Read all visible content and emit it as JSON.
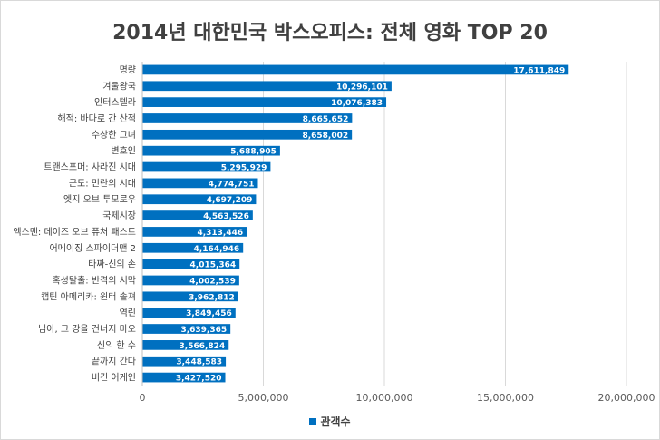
{
  "chart_data": {
    "type": "bar",
    "orientation": "horizontal",
    "title": "2014년 대한민국 박스오피스: 전체 영화 TOP 20",
    "categories": [
      "명량",
      "겨울왕국",
      "인터스텔라",
      "해적: 바다로 간 산적",
      "수상한 그녀",
      "변호인",
      "트랜스포머: 사라진 시대",
      "군도: 민란의 시대",
      "엣지 오브 투모로우",
      "국제시장",
      "엑스맨: 데이즈 오브 퓨처 패스트",
      "어메이징 스파이더맨 2",
      "타짜-신의 손",
      "혹성탈출: 반격의 서막",
      "캡틴 아메리카: 윈터 솔져",
      "역린",
      "님아, 그 강을 건너지 마오",
      "신의 한 수",
      "끝까지 간다",
      "비긴 어게인"
    ],
    "series": [
      {
        "name": "관객수",
        "values": [
          17611849,
          10296101,
          10076383,
          8665652,
          8658002,
          5688905,
          5295929,
          4774751,
          4697209,
          4563526,
          4313446,
          4164946,
          4015364,
          4002539,
          3962812,
          3849456,
          3639365,
          3566824,
          3448583,
          3427520
        ],
        "labels": [
          "17,611,849",
          "10,296,101",
          "10,076,383",
          "8,665,652",
          "8,658,002",
          "5,688,905",
          "5,295,929",
          "4,774,751",
          "4,697,209",
          "4,563,526",
          "4,313,446",
          "4,164,946",
          "4,015,364",
          "4,002,539",
          "3,962,812",
          "3,849,456",
          "3,639,365",
          "3,566,824",
          "3,448,583",
          "3,427,520"
        ]
      }
    ],
    "xlim": [
      0,
      20000000
    ],
    "xticks": [
      0,
      5000000,
      10000000,
      15000000,
      20000000
    ],
    "xtick_labels": [
      "0",
      "5,000,000",
      "10,000,000",
      "15,000,000",
      "20,000,000"
    ],
    "grid": true,
    "legend_position": "bottom",
    "bar_color": "#0070c0"
  }
}
